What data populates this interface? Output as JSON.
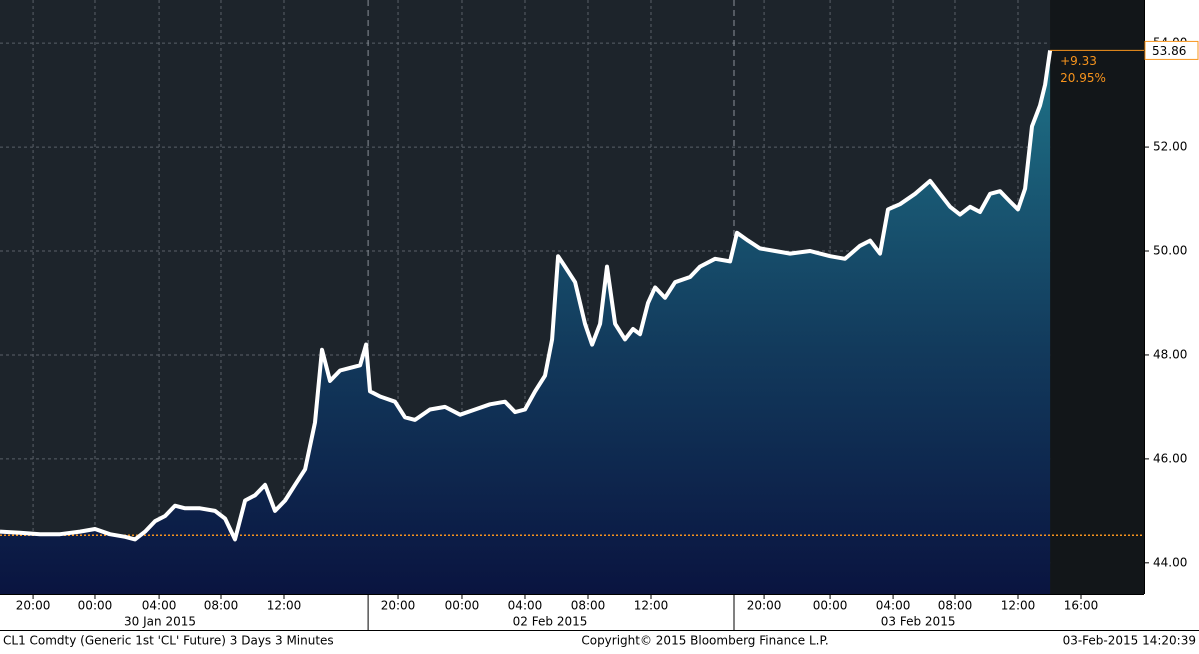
{
  "chart_data": {
    "type": "line",
    "x": [
      0,
      1.27,
      2.54,
      3.81,
      5.08,
      6.03,
      6.98,
      7.94,
      8.57,
      9.21,
      9.84,
      10.48,
      11.11,
      11.75,
      12.7,
      13.65,
      14.29,
      14.92,
      15.56,
      16.19,
      16.83,
      17.46,
      18.1,
      18.73,
      19.37,
      20.0,
      20.44,
      20.95,
      21.59,
      22.22,
      22.86,
      23.24,
      23.49,
      24.13,
      25.08,
      25.71,
      26.35,
      27.3,
      28.25,
      29.21,
      30.16,
      31.11,
      32.06,
      32.7,
      33.33,
      33.97,
      34.6,
      35.05,
      35.43,
      35.87,
      36.51,
      37.14,
      37.59,
      38.1,
      38.54,
      39.05,
      39.68,
      40.19,
      40.63,
      41.14,
      41.59,
      42.22,
      42.86,
      43.81,
      44.44,
      45.4,
      46.35,
      46.79,
      47.49,
      48.25,
      49.21,
      50.16,
      51.43,
      52.7,
      53.65,
      54.6,
      55.24,
      55.87,
      56.38,
      57.14,
      58.1,
      59.05,
      59.68,
      60.32,
      60.95,
      61.59,
      62.22,
      62.86,
      63.49,
      64.13,
      64.63,
      65.08,
      65.52,
      66.03,
      66.35,
      66.67
    ],
    "values": [
      44.6,
      44.58,
      44.55,
      44.55,
      44.6,
      44.65,
      44.55,
      44.5,
      44.45,
      44.6,
      44.8,
      44.9,
      45.1,
      45.05,
      45.05,
      45.0,
      44.85,
      44.45,
      45.2,
      45.3,
      45.5,
      45.0,
      45.2,
      45.5,
      45.8,
      46.7,
      48.1,
      47.5,
      47.7,
      47.75,
      47.8,
      48.2,
      47.3,
      47.2,
      47.1,
      46.8,
      46.75,
      46.95,
      47.0,
      46.85,
      46.95,
      47.05,
      47.1,
      46.9,
      46.95,
      47.3,
      47.6,
      48.3,
      49.9,
      49.7,
      49.4,
      48.6,
      48.2,
      48.6,
      49.7,
      48.6,
      48.3,
      48.5,
      48.4,
      49.0,
      49.3,
      49.1,
      49.4,
      49.5,
      49.7,
      49.85,
      49.8,
      50.35,
      50.2,
      50.05,
      50.0,
      49.95,
      50.0,
      49.9,
      49.85,
      50.1,
      50.2,
      49.95,
      50.8,
      50.9,
      51.1,
      51.35,
      51.1,
      50.85,
      50.7,
      50.85,
      50.75,
      51.1,
      51.15,
      50.95,
      50.8,
      51.2,
      52.4,
      52.8,
      53.2,
      53.86
    ],
    "color": "#ffffff",
    "xlim": [
      0,
      72.63
    ],
    "ylim": [
      43.4,
      54.83
    ],
    "yticks": [
      {
        "value": 44,
        "label": "44.00"
      },
      {
        "value": 46,
        "label": "46.00"
      },
      {
        "value": 48,
        "label": "48.00"
      },
      {
        "value": 50,
        "label": "50.00"
      },
      {
        "value": 52,
        "label": "52.00"
      },
      {
        "value": 54,
        "label": "54.00"
      }
    ],
    "xticks": [
      {
        "value": 2.1,
        "label": "20:00"
      },
      {
        "value": 6.03,
        "label": "00:00"
      },
      {
        "value": 10.1,
        "label": "04:00"
      },
      {
        "value": 14.03,
        "label": "08:00"
      },
      {
        "value": 18.03,
        "label": "12:00"
      },
      {
        "value": 25.27,
        "label": "20:00"
      },
      {
        "value": 29.33,
        "label": "00:00"
      },
      {
        "value": 33.33,
        "label": "04:00"
      },
      {
        "value": 37.33,
        "label": "08:00"
      },
      {
        "value": 41.33,
        "label": "12:00"
      },
      {
        "value": 48.51,
        "label": "20:00"
      },
      {
        "value": 52.7,
        "label": "00:00"
      },
      {
        "value": 56.7,
        "label": "04:00"
      },
      {
        "value": 60.63,
        "label": "08:00"
      },
      {
        "value": 64.63,
        "label": "12:00"
      },
      {
        "value": 68.63,
        "label": "16:00"
      }
    ],
    "date_labels": [
      {
        "value": 10.16,
        "label": "30 Jan 2015"
      },
      {
        "value": 34.92,
        "label": "02 Feb 2015"
      },
      {
        "value": 58.29,
        "label": "03 Feb 2015"
      }
    ],
    "session_breaks": [
      23.37,
      46.6
    ],
    "reference_line": 44.53,
    "reference_color": "#f7941d",
    "annotations": [
      "+9.33",
      "20.95%"
    ],
    "grid": true,
    "footer": [
      "CL1 Comdty (Generic 1st 'CL' Future) 3 Days 3 Minutes",
      "Copyright© 2015 Bloomberg Finance L.P.",
      "03-Feb-2015 14:20:39"
    ]
  }
}
